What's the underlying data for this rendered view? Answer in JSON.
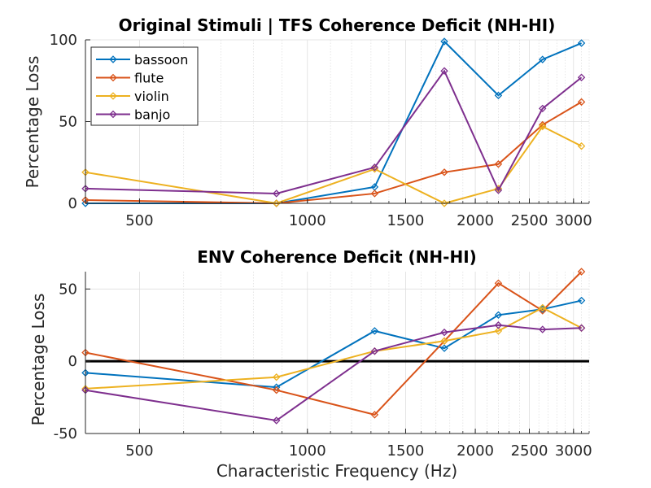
{
  "chart_data": [
    {
      "type": "line",
      "title": "Original Stimuli | TFS Coherence Deficit (NH-HI)",
      "xlabel": "",
      "ylabel": "Percentage Loss",
      "xscale": "log",
      "xlim": [
        400,
        3200
      ],
      "ylim": [
        0,
        100
      ],
      "xticks": [
        500,
        1000,
        1500,
        2000,
        2500,
        3000
      ],
      "xtick_labels": [
        "500",
        "1000",
        "1500",
        "2000",
        "2500",
        "3000"
      ],
      "yticks": [
        0,
        50,
        100
      ],
      "ytick_labels": [
        "0",
        "50",
        "100"
      ],
      "grid": true,
      "legend": "top-left",
      "x": [
        400,
        880,
        1320,
        1760,
        2200,
        2640,
        3100
      ],
      "series": [
        {
          "name": "bassoon",
          "color": "#0072BD",
          "values": [
            0,
            0,
            10,
            99,
            66,
            88,
            98
          ]
        },
        {
          "name": "flute",
          "color": "#D95319",
          "values": [
            2,
            0,
            6,
            19,
            24,
            48,
            62
          ]
        },
        {
          "name": "violin",
          "color": "#EDB120",
          "values": [
            19,
            0,
            21,
            0,
            9,
            47,
            35
          ]
        },
        {
          "name": "banjo",
          "color": "#7E2F8E",
          "values": [
            9,
            6,
            22,
            81,
            8,
            58,
            77
          ]
        }
      ]
    },
    {
      "type": "line",
      "title": "ENV Coherence Deficit (NH-HI)",
      "xlabel": "Characteristic Frequency (Hz)",
      "ylabel": "Percentage Loss",
      "xscale": "log",
      "xlim": [
        400,
        3200
      ],
      "ylim": [
        -50,
        62
      ],
      "xticks": [
        500,
        1000,
        1500,
        2000,
        2500,
        3000
      ],
      "xtick_labels": [
        "500",
        "1000",
        "1500",
        "2000",
        "2500",
        "3000"
      ],
      "yticks": [
        -50,
        0,
        50
      ],
      "ytick_labels": [
        "-50",
        "0",
        "50"
      ],
      "grid": true,
      "reference_line": 0,
      "x": [
        400,
        880,
        1320,
        1760,
        2200,
        2640,
        3100
      ],
      "series": [
        {
          "color": "#0072BD",
          "values": [
            -8,
            -18,
            21,
            9,
            32,
            36,
            42
          ]
        },
        {
          "color": "#D95319",
          "values": [
            6,
            -20,
            -37,
            14,
            54,
            35,
            62
          ]
        },
        {
          "color": "#EDB120",
          "values": [
            -19,
            -11,
            7,
            14,
            21,
            37,
            23
          ]
        },
        {
          "color": "#7E2F8E",
          "values": [
            -20,
            -41,
            7,
            20,
            25,
            22,
            23
          ]
        }
      ]
    }
  ]
}
